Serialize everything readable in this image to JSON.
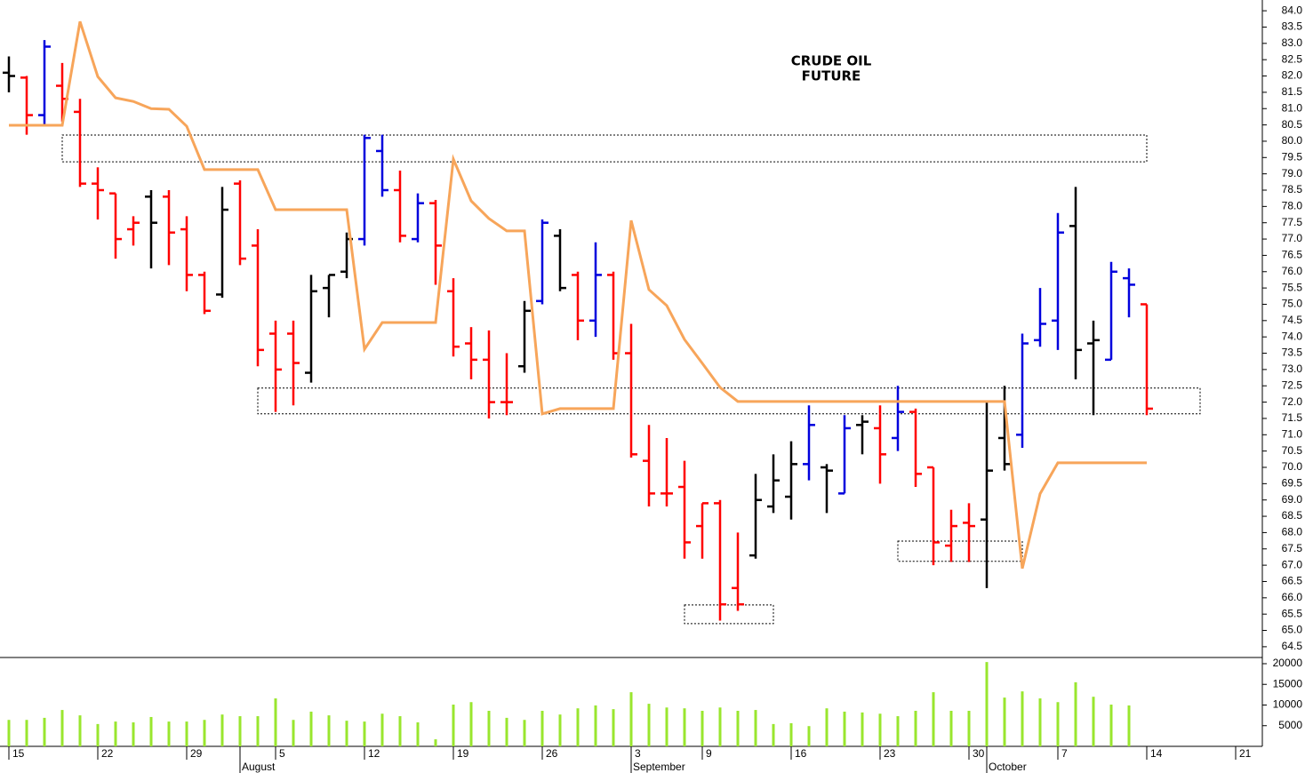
{
  "chart_data": [
    {
      "type": "ohlc",
      "title": "CRUDE OIL",
      "subtitle": "FUTURE",
      "categories": [
        "15",
        null,
        null,
        null,
        null,
        "22",
        null,
        null,
        null,
        null,
        "29",
        null,
        null,
        null,
        null,
        "5",
        null,
        null,
        null,
        null,
        "12",
        null,
        null,
        null,
        null,
        "19",
        null,
        null,
        null,
        null,
        "26",
        null,
        null,
        null,
        null,
        "3",
        null,
        null,
        null,
        "9",
        null,
        null,
        null,
        null,
        "16",
        null,
        null,
        null,
        null,
        "23",
        null,
        null,
        null,
        null,
        "30",
        null,
        null,
        null,
        null,
        "7",
        null,
        null,
        null,
        null,
        "14",
        null,
        null,
        null,
        null,
        "21"
      ],
      "months": [
        {
          "label": "August",
          "index": 13
        },
        {
          "label": "September",
          "index": 35
        },
        {
          "label": "October",
          "index": 55
        }
      ],
      "palette": {
        "r": "#ff0000",
        "b": "#0000dd",
        "k": "#000000"
      },
      "bar_colors": [
        "k",
        "r",
        "b",
        "r",
        "r",
        "r",
        "r",
        "r",
        "k",
        "r",
        "r",
        "r",
        "k",
        "r",
        "r",
        "r",
        "r",
        "k",
        "k",
        "k",
        "b",
        "b",
        "r",
        "b",
        "r",
        "r",
        "r",
        "r",
        "r",
        "k",
        "b",
        "k",
        "r",
        "b",
        "r",
        "r",
        "r",
        "r",
        "r",
        "r",
        "r",
        "r",
        "k",
        "k",
        "k",
        "b",
        "k",
        "b",
        "k",
        "r",
        "b",
        "r",
        "r",
        "r",
        "r",
        "k",
        "k",
        "b",
        "b",
        "b",
        "k",
        "k",
        "b",
        "b",
        "r",
        null,
        null,
        null,
        null,
        null
      ],
      "open": [
        82.1,
        81.95,
        80.8,
        81.7,
        80.9,
        78.7,
        78.4,
        77.3,
        78.3,
        78.3,
        77.3,
        75.9,
        75.3,
        78.7,
        76.8,
        74.1,
        74.1,
        72.9,
        75.5,
        76.0,
        77.0,
        79.7,
        78.5,
        77.0,
        78.1,
        75.4,
        73.8,
        73.3,
        72.0,
        73.1,
        75.1,
        77.1,
        75.9,
        74.5,
        75.9,
        73.5,
        70.2,
        69.2,
        69.4,
        68.2,
        68.9,
        66.3,
        67.3,
        68.8,
        69.1,
        70.1,
        70.0,
        69.2,
        71.3,
        71.2,
        70.9,
        71.7,
        70.0,
        67.6,
        68.3,
        68.4,
        70.9,
        71.0,
        73.9,
        74.5,
        77.4,
        73.8,
        73.3,
        75.8,
        75.0,
        null,
        null,
        null,
        null,
        null
      ],
      "high": [
        82.6,
        82.0,
        83.1,
        82.4,
        81.3,
        79.2,
        78.4,
        77.7,
        78.5,
        78.5,
        77.7,
        76.0,
        78.6,
        78.8,
        77.3,
        74.5,
        74.5,
        75.9,
        75.9,
        77.2,
        80.2,
        80.2,
        79.1,
        78.4,
        78.2,
        75.8,
        74.3,
        74.2,
        73.5,
        75.1,
        77.6,
        77.3,
        76.0,
        76.9,
        76.0,
        74.4,
        71.3,
        70.9,
        70.2,
        68.9,
        69.0,
        68.0,
        69.8,
        70.4,
        70.8,
        71.9,
        70.1,
        71.6,
        71.6,
        71.9,
        72.5,
        71.8,
        70.0,
        68.7,
        68.9,
        72.0,
        72.5,
        74.1,
        75.5,
        77.8,
        78.6,
        74.5,
        76.3,
        76.1,
        75.0,
        null,
        null,
        null,
        null,
        null
      ],
      "low": [
        81.5,
        80.2,
        80.5,
        80.6,
        78.6,
        77.6,
        76.4,
        76.8,
        76.1,
        76.2,
        75.4,
        74.7,
        75.2,
        76.2,
        73.1,
        71.7,
        71.9,
        72.6,
        74.6,
        75.8,
        76.8,
        78.3,
        76.9,
        76.9,
        75.6,
        73.4,
        72.7,
        71.5,
        71.6,
        72.9,
        75.0,
        75.4,
        73.9,
        74.0,
        73.3,
        70.3,
        68.8,
        68.8,
        67.2,
        67.2,
        65.3,
        65.6,
        67.2,
        68.6,
        68.4,
        69.6,
        68.6,
        69.2,
        70.4,
        69.5,
        70.5,
        69.4,
        67.0,
        67.1,
        67.1,
        66.3,
        69.9,
        70.6,
        73.7,
        73.6,
        72.7,
        71.6,
        73.3,
        74.6,
        71.6,
        null,
        null,
        null,
        null,
        null
      ],
      "close": [
        82.0,
        80.8,
        82.9,
        81.3,
        78.7,
        78.5,
        77.0,
        77.5,
        77.5,
        77.2,
        75.9,
        74.8,
        77.9,
        76.4,
        73.6,
        73.0,
        73.2,
        75.4,
        75.9,
        77.0,
        80.1,
        78.5,
        77.1,
        78.1,
        76.8,
        73.7,
        73.3,
        72.0,
        72.0,
        74.8,
        77.5,
        75.5,
        74.5,
        75.9,
        73.5,
        70.4,
        69.2,
        69.2,
        67.7,
        68.9,
        65.8,
        65.8,
        69.0,
        69.6,
        70.1,
        71.3,
        69.9,
        71.2,
        71.4,
        70.4,
        71.7,
        69.8,
        67.7,
        68.2,
        68.2,
        69.9,
        70.1,
        73.8,
        74.4,
        77.2,
        73.6,
        73.9,
        76.0,
        75.6,
        71.8,
        null,
        null,
        null,
        null,
        null
      ],
      "line": {
        "color": "#f7a55a",
        "values": [
          80.49,
          80.49,
          80.49,
          80.49,
          83.67,
          81.98,
          81.33,
          81.22,
          81.0,
          80.98,
          80.46,
          79.13,
          79.13,
          79.13,
          79.13,
          77.9,
          77.9,
          77.9,
          77.9,
          77.9,
          73.62,
          74.44,
          74.44,
          74.44,
          74.44,
          79.45,
          78.17,
          77.63,
          77.25,
          77.25,
          71.64,
          71.8,
          71.8,
          71.8,
          71.8,
          77.57,
          75.45,
          74.96,
          73.92,
          73.19,
          72.45,
          72.02,
          72.02,
          72.02,
          72.02,
          72.02,
          72.02,
          72.02,
          72.02,
          72.02,
          72.02,
          72.02,
          72.02,
          72.02,
          72.02,
          72.02,
          72.02,
          66.9,
          69.19,
          70.14,
          70.14,
          70.14,
          70.14,
          70.14,
          70.14,
          null,
          null,
          null,
          null,
          null
        ]
      },
      "zones": [
        {
          "x": [
            3,
            64
          ],
          "y": [
            79.37,
            80.19
          ]
        },
        {
          "x": [
            14,
            67
          ],
          "y": [
            71.64,
            72.43
          ]
        },
        {
          "x": [
            38,
            43
          ],
          "y": [
            65.21,
            65.78
          ]
        },
        {
          "x": [
            50,
            57
          ],
          "y": [
            67.12,
            67.74
          ]
        }
      ],
      "ylim": [
        64.17,
        84.33
      ],
      "yticks": [
        {
          "value": 64.5,
          "label": "64.5"
        },
        {
          "value": 65,
          "label": "65.0"
        },
        {
          "value": 65.5,
          "label": "65.5"
        },
        {
          "value": 66,
          "label": "66.0"
        },
        {
          "value": 66.5,
          "label": "66.5"
        },
        {
          "value": 67,
          "label": "67.0"
        },
        {
          "value": 67.5,
          "label": "67.5"
        },
        {
          "value": 68,
          "label": "68.0"
        },
        {
          "value": 68.5,
          "label": "68.5"
        },
        {
          "value": 69,
          "label": "69.0"
        },
        {
          "value": 69.5,
          "label": "69.5"
        },
        {
          "value": 70,
          "label": "70.0"
        },
        {
          "value": 70.5,
          "label": "70.5"
        },
        {
          "value": 71,
          "label": "71.0"
        },
        {
          "value": 71.5,
          "label": "71.5"
        },
        {
          "value": 72,
          "label": "72.0"
        },
        {
          "value": 72.5,
          "label": "72.5"
        },
        {
          "value": 73,
          "label": "73.0"
        },
        {
          "value": 73.5,
          "label": "73.5"
        },
        {
          "value": 74,
          "label": "74.0"
        },
        {
          "value": 74.5,
          "label": "74.5"
        },
        {
          "value": 75,
          "label": "75.0"
        },
        {
          "value": 75.5,
          "label": "75.5"
        },
        {
          "value": 76,
          "label": "76.0"
        },
        {
          "value": 76.5,
          "label": "76.5"
        },
        {
          "value": 77,
          "label": "77.0"
        },
        {
          "value": 77.5,
          "label": "77.5"
        },
        {
          "value": 78,
          "label": "78.0"
        },
        {
          "value": 78.5,
          "label": "78.5"
        },
        {
          "value": 79,
          "label": "79.0"
        },
        {
          "value": 79.5,
          "label": "79.5"
        },
        {
          "value": 80,
          "label": "80.0"
        },
        {
          "value": 80.5,
          "label": "80.5"
        },
        {
          "value": 81,
          "label": "81.0"
        },
        {
          "value": 81.5,
          "label": "81.5"
        },
        {
          "value": 82,
          "label": "82.0"
        },
        {
          "value": 82.5,
          "label": "82.5"
        },
        {
          "value": 83,
          "label": "83.0"
        },
        {
          "value": 83.5,
          "label": "83.5"
        },
        {
          "value": 84,
          "label": "84.0"
        }
      ]
    },
    {
      "type": "volume",
      "color": "#99e62e",
      "values": [
        6400,
        6400,
        6900,
        8800,
        7500,
        5400,
        6000,
        5800,
        7100,
        6000,
        6000,
        6400,
        7700,
        7300,
        7300,
        11600,
        6400,
        8400,
        7500,
        6200,
        6000,
        7900,
        7300,
        5800,
        1700,
        10100,
        10700,
        8600,
        6900,
        6400,
        8600,
        7700,
        9200,
        9900,
        9000,
        13100,
        10300,
        9400,
        9200,
        8600,
        9400,
        8600,
        8800,
        5400,
        5600,
        4900,
        9200,
        8400,
        8200,
        7900,
        7300,
        8600,
        13100,
        8600,
        8600,
        20400,
        11800,
        13300,
        11600,
        10700,
        15500,
        12000,
        10100,
        9900,
        null,
        null,
        null,
        null,
        null,
        null
      ],
      "ylim": [
        0,
        21500
      ],
      "yticks": [
        5000,
        10000,
        15000,
        20000
      ]
    }
  ]
}
